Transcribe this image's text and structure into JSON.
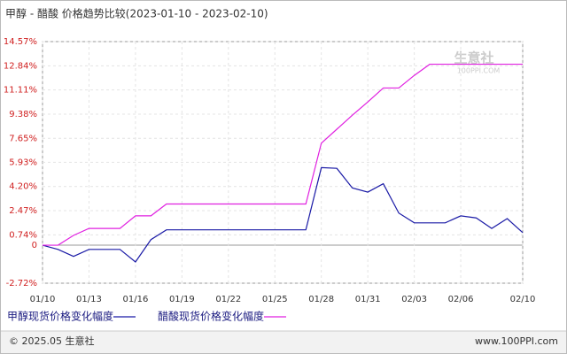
{
  "chart_data": {
    "type": "line",
    "title": "甲醇 - 醋酸 价格趋势比较(2023-01-10 - 2023-02-10)",
    "categories": [
      "01/10",
      null,
      null,
      "01/13",
      null,
      null,
      "01/16",
      null,
      null,
      "01/19",
      null,
      null,
      "01/22",
      null,
      null,
      "01/25",
      null,
      null,
      "01/28",
      null,
      null,
      "01/31",
      null,
      null,
      "02/03",
      null,
      null,
      "02/06",
      null,
      null,
      null,
      "02/10"
    ],
    "series": [
      {
        "name": "甲醇现货价格变化幅度",
        "color": "#1a1aa6",
        "values": [
          0,
          -0.3,
          -0.8,
          -0.3,
          -0.3,
          -0.3,
          -1.2,
          0.4,
          1.1,
          1.1,
          1.1,
          1.1,
          1.1,
          1.1,
          1.1,
          1.1,
          1.1,
          1.1,
          5.55,
          5.5,
          4.1,
          3.8,
          4.4,
          2.3,
          1.6,
          1.6,
          1.6,
          2.1,
          1.95,
          1.2,
          1.9,
          0.9
        ]
      },
      {
        "name": "醋酸现货价格变化幅度",
        "color": "#e020e0",
        "values": [
          0,
          0,
          0.7,
          1.2,
          1.2,
          1.2,
          2.1,
          2.1,
          2.95,
          2.95,
          2.95,
          2.95,
          2.95,
          2.95,
          2.95,
          2.95,
          2.95,
          2.95,
          7.3,
          8.3,
          9.3,
          10.25,
          11.25,
          11.25,
          12.15,
          12.95,
          12.95,
          12.95,
          12.95,
          12.95,
          12.95,
          12.95
        ]
      }
    ],
    "ylim": [
      -2.72,
      14.57
    ],
    "yticks": [
      {
        "value": 14.57,
        "label": "14.57%"
      },
      {
        "value": 12.84,
        "label": "12.84%"
      },
      {
        "value": 11.11,
        "label": "11.11%"
      },
      {
        "value": 9.38,
        "label": "9.38%"
      },
      {
        "value": 7.65,
        "label": "7.65%"
      },
      {
        "value": 5.93,
        "label": "5.93%"
      },
      {
        "value": 4.2,
        "label": "4.20%"
      },
      {
        "value": 2.47,
        "label": "2.47%"
      },
      {
        "value": 0.74,
        "label": "0.74%"
      },
      0,
      {
        "value": -2.72,
        "label": "-2.72%"
      }
    ],
    "grid": true,
    "watermark": "生意社",
    "watermark_url": "100PPI.COM",
    "footer_left": "© 2025.05 生意社",
    "footer_right": "www.100PPI.com"
  }
}
